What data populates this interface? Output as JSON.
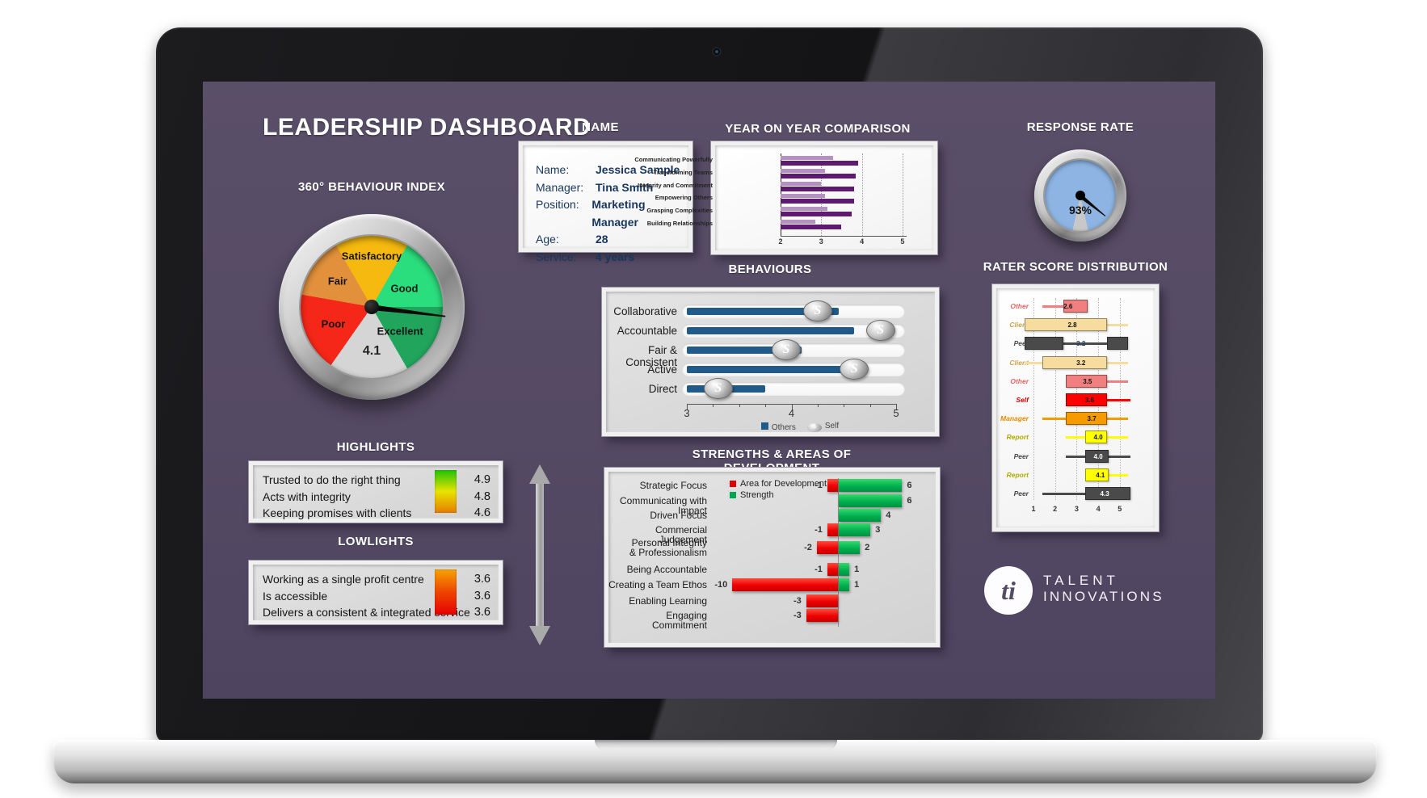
{
  "title": "LEADERSHIP DASHBOARD",
  "profile": {
    "title": "NAME",
    "rows": [
      [
        "Name:",
        "Jessica Sample"
      ],
      [
        "Manager:",
        "Tina Smith"
      ],
      [
        "Position:",
        "Marketing Manager"
      ],
      [
        "Age:",
        "28"
      ],
      [
        "Service:",
        "4 years"
      ]
    ]
  },
  "highlights": {
    "title": "HIGHLIGHTS",
    "items": [
      [
        "Trusted to do the right thing",
        "4.9"
      ],
      [
        "Acts with integrity",
        "4.8"
      ],
      [
        "Keeping promises with clients",
        "4.6"
      ]
    ],
    "bar_colors": [
      "#21C206",
      "#E8E400",
      "#E67C00"
    ]
  },
  "lowlights": {
    "title": "LOWLIGHTS",
    "items": [
      [
        "Working as a single profit centre",
        "3.6"
      ],
      [
        "Is accessible",
        "3.6"
      ],
      [
        "Delivers a consistent & integrated service",
        "3.6"
      ]
    ],
    "bar_colors": [
      "#F6A300",
      "#EE4400",
      "#E60000"
    ]
  },
  "logo": {
    "monogram": "ti",
    "line1": "TALENT",
    "line2": "INNOVATIONS"
  },
  "chart_data": [
    {
      "id": "behaviour_index",
      "type": "gauge",
      "title": "360° BEHAVIOUR INDEX",
      "value": 4.1,
      "display": "4.1",
      "scale": [
        1,
        5
      ],
      "segments": [
        {
          "label": "Satisfactory",
          "color": "#F5B90F"
        },
        {
          "label": "Good",
          "color": "#2BDE7D"
        },
        {
          "label": "Excellent",
          "color": "#21A55C"
        },
        {
          "label": "",
          "color": "#D5D5D5"
        },
        {
          "label": "Poor",
          "color": "#F42718"
        },
        {
          "label": "Fair",
          "color": "#E2903B"
        }
      ]
    },
    {
      "id": "yoy",
      "type": "bar",
      "orientation": "horizontal",
      "title": "YEAR ON YEAR COMPARISON",
      "categories": [
        "Communicating Powerfully",
        "Transforming Teams",
        "Integrity and Commitment",
        "Empowering Others",
        "Grasping Complexities",
        "Building Relationships"
      ],
      "series": [
        {
          "color": "#B790C3",
          "values": [
            3.3,
            3.1,
            3.0,
            3.1,
            3.15,
            2.85
          ]
        },
        {
          "color": "#5E1A6E",
          "values": [
            3.9,
            3.85,
            3.8,
            3.8,
            3.75,
            3.5
          ]
        }
      ],
      "xlim": [
        2,
        5.1
      ],
      "ticks": [
        2,
        3,
        4,
        5
      ],
      "gridlines": [
        3,
        4,
        5
      ]
    },
    {
      "id": "response_rate",
      "type": "gauge",
      "title": "RESPONSE RATE",
      "value": 93,
      "display": "93%",
      "fill_color": "#8DB4E2",
      "rest_color": "#C8C8C8"
    },
    {
      "id": "behaviours",
      "type": "slider",
      "title": "BEHAVIOURS",
      "xlim": [
        3,
        5
      ],
      "ticks": [
        3,
        4,
        5
      ],
      "others_color": "#1F5A8A",
      "legend": [
        {
          "label": "Others"
        },
        {
          "label": "Self"
        }
      ],
      "rows": [
        {
          "label": "Collaborative",
          "others": 4.45,
          "self": 4.25
        },
        {
          "label": "Accountable",
          "others": 4.6,
          "self": 4.85
        },
        {
          "label": "Fair & Consistent",
          "others": 4.1,
          "self": 3.95
        },
        {
          "label": "Active",
          "others": 4.7,
          "self": 4.6
        },
        {
          "label": "Direct",
          "others": 3.75,
          "self": 3.3
        }
      ]
    },
    {
      "id": "rater",
      "type": "boxplot",
      "title": "RATER SCORE DISTRIBUTION",
      "xlim": [
        1,
        5
      ],
      "ticks": [
        1,
        2,
        3,
        4,
        5
      ],
      "rows": [
        {
          "label": "Other",
          "color": "#F08080",
          "label_color": "#E06666",
          "value": "2.6",
          "value_color": "#111",
          "whisker": [
            1.4,
            3.5
          ],
          "box": [
            2.4,
            3.5
          ]
        },
        {
          "label": "Client",
          "color": "#F7DCA0",
          "label_color": "#C9A44C",
          "value": "2.8",
          "value_color": "#111",
          "whisker": [
            0.6,
            5.4
          ],
          "box": [
            0.6,
            4.4
          ]
        },
        {
          "label": "Peer",
          "color": "#4A4A4A",
          "label_color": "#4A4A4A",
          "value": "3.2",
          "value_color": "#1F3864",
          "whisker": [
            0.6,
            5.4
          ],
          "box": [
            0.6,
            2.4
          ],
          "box2": [
            4.4,
            5.4
          ]
        },
        {
          "label": "Client",
          "color": "#F7DCA0",
          "label_color": "#C9A44C",
          "value": "3.2",
          "value_color": "#111",
          "whisker": [
            0.6,
            5.4
          ],
          "box": [
            1.4,
            4.4
          ]
        },
        {
          "label": "Other",
          "color": "#F08080",
          "label_color": "#E06666",
          "value": "3.5",
          "value_color": "#111",
          "whisker": [
            2.5,
            5.4
          ],
          "box": [
            2.5,
            4.4
          ]
        },
        {
          "label": "Self",
          "color": "#FF0000",
          "label_color": "#D40000",
          "value": "3.6",
          "value_color": "#111",
          "whisker": [
            2.5,
            5.5
          ],
          "box": [
            2.5,
            4.4
          ]
        },
        {
          "label": "Manager",
          "color": "#F59B00",
          "label_color": "#E08C00",
          "value": "3.7",
          "value_color": "#111",
          "whisker": [
            1.4,
            5.4
          ],
          "box": [
            2.5,
            4.4
          ]
        },
        {
          "label": "Report",
          "color": "#FFFF00",
          "label_color": "#ABAB00",
          "value": "4.0",
          "value_color": "#111",
          "whisker": [
            2.5,
            5.4
          ],
          "box": [
            3.4,
            4.4
          ]
        },
        {
          "label": "Peer",
          "color": "#4A4A4A",
          "label_color": "#4A4A4A",
          "value": "4.0",
          "value_color": "#fff",
          "whisker": [
            2.5,
            5.5
          ],
          "box": [
            3.4,
            4.5
          ]
        },
        {
          "label": "Report",
          "color": "#FFFF00",
          "label_color": "#ABAB00",
          "value": "4.1",
          "value_color": "#111",
          "whisker": [
            3.4,
            5.4
          ],
          "box": [
            3.4,
            4.5
          ]
        },
        {
          "label": "Peer",
          "color": "#4A4A4A",
          "label_color": "#4A4A4A",
          "value": "4.3",
          "value_color": "#fff",
          "whisker": [
            1.4,
            3.4
          ],
          "box": [
            3.4,
            5.5
          ]
        }
      ]
    },
    {
      "id": "strengths",
      "type": "bar",
      "diverging": true,
      "title": "STRENGTHS & AREAS OF DEVELOPMENT",
      "legend": [
        {
          "label": "Area for Development",
          "color": "#E00000"
        },
        {
          "label": "Strength",
          "color": "#00A550"
        }
      ],
      "rows": [
        {
          "label": "Strategic Focus",
          "neg": -1,
          "pos": 6
        },
        {
          "label": "Communicating with Impact",
          "neg": 0,
          "pos": 6
        },
        {
          "label": "Driven Focus",
          "neg": 0,
          "pos": 4
        },
        {
          "label": "Commercial Judgement",
          "neg": -1,
          "pos": 3
        },
        {
          "label": "Personal Integrity\n& Professionalism",
          "neg": -2,
          "pos": 2
        },
        {
          "label": "Being Accountable",
          "neg": -1,
          "pos": 1
        },
        {
          "label": "Creating a Team Ethos",
          "neg": -10,
          "pos": 1
        },
        {
          "label": "Enabling Learning",
          "neg": -3,
          "pos": 0
        },
        {
          "label": "Engaging Commitment",
          "neg": -3,
          "pos": 0
        }
      ]
    }
  ]
}
